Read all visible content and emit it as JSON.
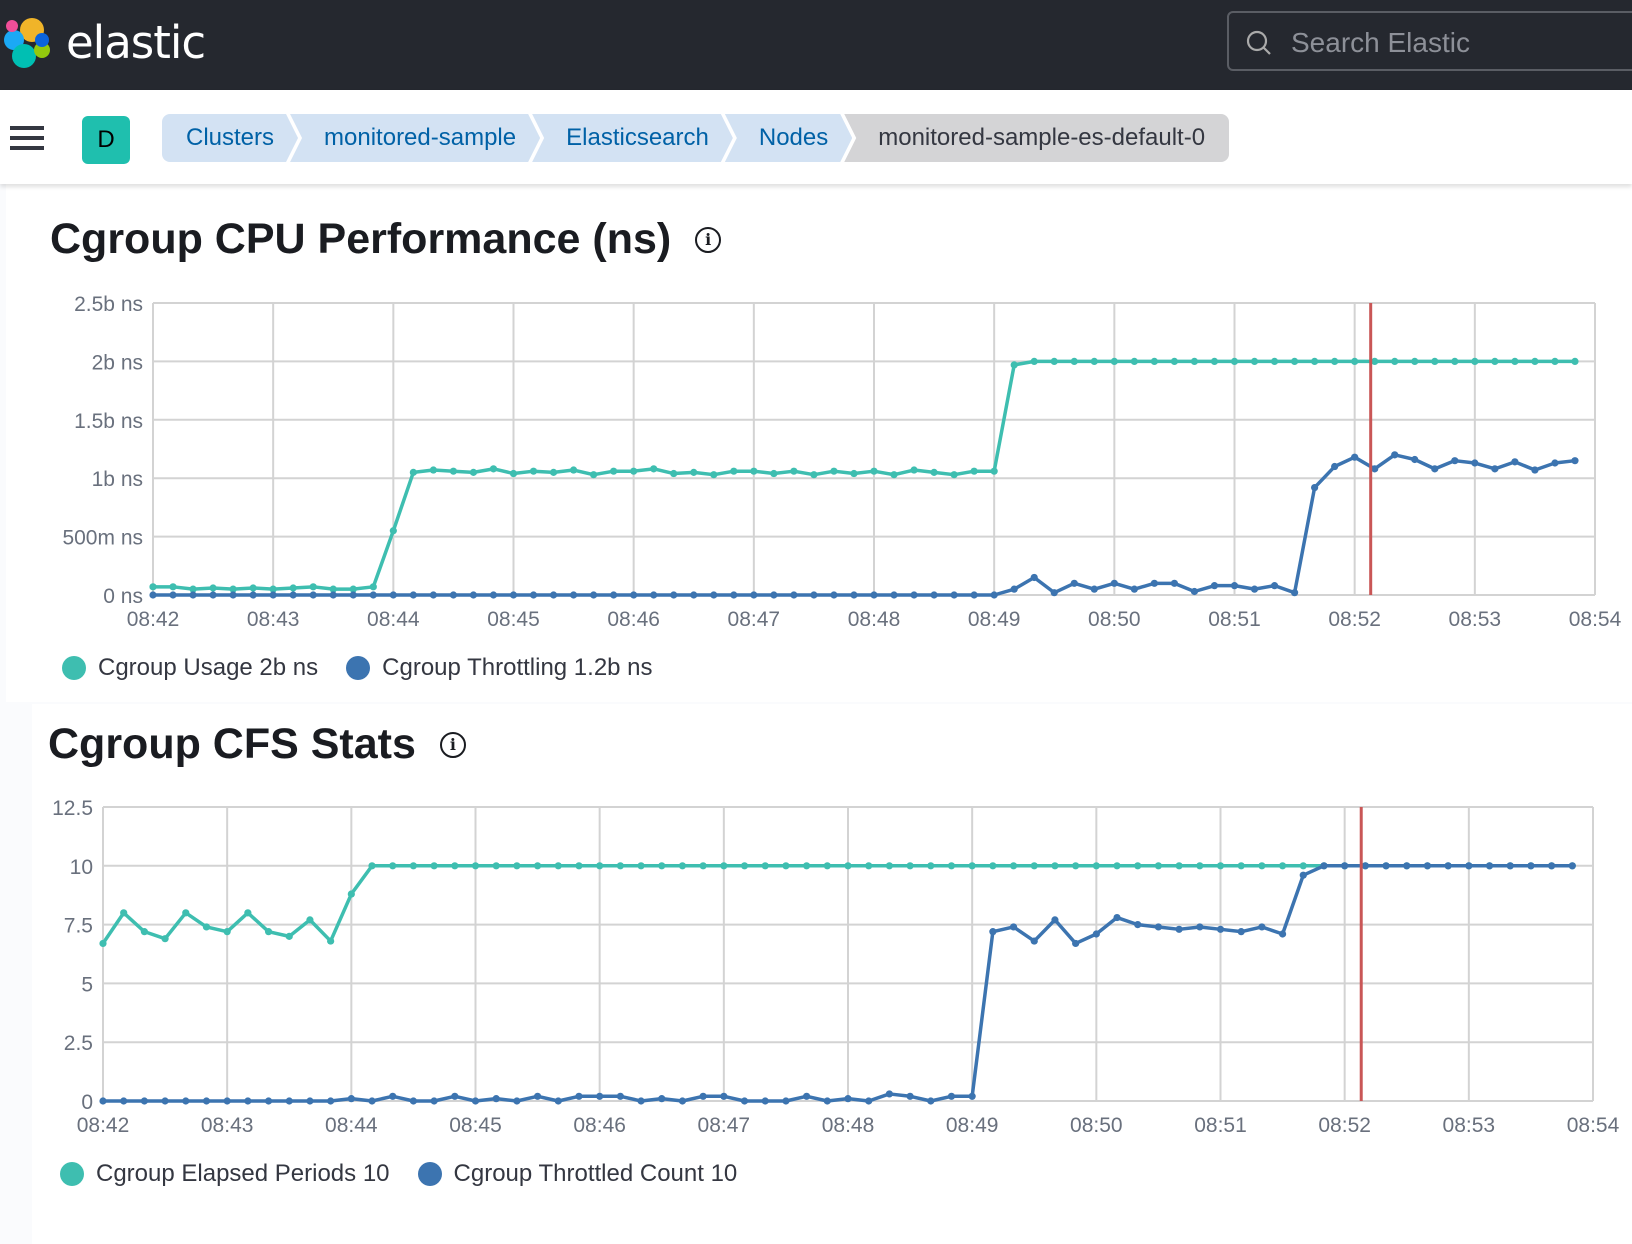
{
  "header": {
    "brand": "elastic",
    "search_placeholder": "Search Elastic"
  },
  "nav": {
    "space_initial": "D",
    "breadcrumbs": [
      "Clusters",
      "monitored-sample",
      "Elasticsearch",
      "Nodes",
      "monitored-sample-es-default-0"
    ]
  },
  "colors": {
    "usage": "#3ebeb0",
    "throttle": "#3c74b0",
    "cursor": "#c95656",
    "grid": "#d3d3d3"
  },
  "chart_data": [
    {
      "type": "line",
      "title": "Cgroup CPU Performance (ns)",
      "ylim": [
        0,
        2500000000
      ],
      "y_ticks": [
        "0 ns",
        "500m ns",
        "1b ns",
        "1.5b ns",
        "2b ns",
        "2.5b ns"
      ],
      "x_ticks": [
        "08:42",
        "08:43",
        "08:44",
        "08:45",
        "08:46",
        "08:47",
        "08:48",
        "08:49",
        "08:50",
        "08:51",
        "08:52",
        "08:53",
        "08:54"
      ],
      "xlim": [
        "08:42:00",
        "08:54:00"
      ],
      "grid": true,
      "legend_position": "bottom-left",
      "cursor_time": "08:52:08",
      "legend": [
        "Cgroup Usage 2b ns",
        "Cgroup Throttling 1.2b ns"
      ],
      "x": [
        "08:42:00",
        "08:42:10",
        "08:42:20",
        "08:42:30",
        "08:42:40",
        "08:42:50",
        "08:43:00",
        "08:43:10",
        "08:43:20",
        "08:43:30",
        "08:43:40",
        "08:43:50",
        "08:44:00",
        "08:44:10",
        "08:44:20",
        "08:44:30",
        "08:44:40",
        "08:44:50",
        "08:45:00",
        "08:45:10",
        "08:45:20",
        "08:45:30",
        "08:45:40",
        "08:45:50",
        "08:46:00",
        "08:46:10",
        "08:46:20",
        "08:46:30",
        "08:46:40",
        "08:46:50",
        "08:47:00",
        "08:47:10",
        "08:47:20",
        "08:47:30",
        "08:47:40",
        "08:47:50",
        "08:48:00",
        "08:48:10",
        "08:48:20",
        "08:48:30",
        "08:48:40",
        "08:48:50",
        "08:49:00",
        "08:49:10",
        "08:49:20",
        "08:49:30",
        "08:49:40",
        "08:49:50",
        "08:50:00",
        "08:50:10",
        "08:50:20",
        "08:50:30",
        "08:50:40",
        "08:50:50",
        "08:51:00",
        "08:51:10",
        "08:51:20",
        "08:51:30",
        "08:51:40",
        "08:51:50",
        "08:52:00",
        "08:52:10",
        "08:52:20",
        "08:52:30",
        "08:52:40",
        "08:52:50",
        "08:53:00",
        "08:53:10",
        "08:53:20",
        "08:53:30",
        "08:53:40",
        "08:53:50"
      ],
      "series": [
        {
          "name": "Cgroup Usage",
          "color_key": "usage",
          "values": [
            70000000.0,
            70000000.0,
            50000000.0,
            60000000.0,
            50000000.0,
            60000000.0,
            50000000.0,
            60000000.0,
            70000000.0,
            50000000.0,
            50000000.0,
            70000000.0,
            550000000.0,
            1050000000.0,
            1070000000.0,
            1060000000.0,
            1050000000.0,
            1080000000.0,
            1040000000.0,
            1060000000.0,
            1050000000.0,
            1070000000.0,
            1030000000.0,
            1060000000.0,
            1060000000.0,
            1080000000.0,
            1040000000.0,
            1050000000.0,
            1030000000.0,
            1060000000.0,
            1060000000.0,
            1040000000.0,
            1060000000.0,
            1030000000.0,
            1060000000.0,
            1040000000.0,
            1060000000.0,
            1030000000.0,
            1070000000.0,
            1050000000.0,
            1030000000.0,
            1060000000.0,
            1060000000.0,
            1970000000.0,
            2000000000.0,
            2000000000.0,
            2000000000.0,
            2000000000.0,
            2000000000.0,
            2000000000.0,
            2000000000.0,
            2000000000.0,
            2000000000.0,
            2000000000.0,
            2000000000.0,
            2000000000.0,
            2000000000.0,
            2000000000.0,
            2000000000.0,
            2000000000.0,
            2000000000.0,
            2000000000.0,
            2000000000.0,
            2000000000.0,
            2000000000.0,
            2000000000.0,
            2000000000.0,
            2000000000.0,
            2000000000.0,
            2000000000.0,
            2000000000.0,
            2000000000.0
          ]
        },
        {
          "name": "Cgroup Throttling",
          "color_key": "throttle",
          "values": [
            0,
            0,
            0,
            0,
            0,
            0,
            0,
            0,
            0,
            0,
            0,
            0,
            0,
            0,
            0,
            0,
            0,
            0,
            0,
            0,
            0,
            0,
            0,
            0,
            0,
            0,
            0,
            0,
            0,
            0,
            0,
            0,
            0,
            0,
            0,
            0,
            0,
            0,
            0,
            0,
            0,
            0,
            0,
            50000000.0,
            150000000.0,
            20000000.0,
            100000000.0,
            50000000.0,
            100000000.0,
            50000000.0,
            100000000.0,
            100000000.0,
            30000000.0,
            80000000.0,
            80000000.0,
            50000000.0,
            80000000.0,
            20000000.0,
            920000000.0,
            1100000000.0,
            1180000000.0,
            1080000000.0,
            1200000000.0,
            1160000000.0,
            1080000000.0,
            1150000000.0,
            1130000000.0,
            1080000000.0,
            1140000000.0,
            1070000000.0,
            1130000000.0,
            1150000000.0
          ]
        }
      ]
    },
    {
      "type": "line",
      "title": "Cgroup CFS Stats",
      "ylim": [
        0,
        12.5
      ],
      "y_ticks": [
        "0",
        "2.5",
        "5",
        "7.5",
        "10",
        "12.5"
      ],
      "x_ticks": [
        "08:42",
        "08:43",
        "08:44",
        "08:45",
        "08:46",
        "08:47",
        "08:48",
        "08:49",
        "08:50",
        "08:51",
        "08:52",
        "08:53",
        "08:54"
      ],
      "xlim": [
        "08:42:00",
        "08:54:00"
      ],
      "grid": true,
      "legend_position": "bottom-left",
      "cursor_time": "08:52:08",
      "legend": [
        "Cgroup Elapsed Periods 10",
        "Cgroup Throttled Count 10"
      ],
      "x": [
        "08:42:00",
        "08:42:10",
        "08:42:20",
        "08:42:30",
        "08:42:40",
        "08:42:50",
        "08:43:00",
        "08:43:10",
        "08:43:20",
        "08:43:30",
        "08:43:40",
        "08:43:50",
        "08:44:00",
        "08:44:10",
        "08:44:20",
        "08:44:30",
        "08:44:40",
        "08:44:50",
        "08:45:00",
        "08:45:10",
        "08:45:20",
        "08:45:30",
        "08:45:40",
        "08:45:50",
        "08:46:00",
        "08:46:10",
        "08:46:20",
        "08:46:30",
        "08:46:40",
        "08:46:50",
        "08:47:00",
        "08:47:10",
        "08:47:20",
        "08:47:30",
        "08:47:40",
        "08:47:50",
        "08:48:00",
        "08:48:10",
        "08:48:20",
        "08:48:30",
        "08:48:40",
        "08:48:50",
        "08:49:00",
        "08:49:10",
        "08:49:20",
        "08:49:30",
        "08:49:40",
        "08:49:50",
        "08:50:00",
        "08:50:10",
        "08:50:20",
        "08:50:30",
        "08:50:40",
        "08:50:50",
        "08:51:00",
        "08:51:10",
        "08:51:20",
        "08:51:30",
        "08:51:40",
        "08:51:50",
        "08:52:00",
        "08:52:10",
        "08:52:20",
        "08:52:30",
        "08:52:40",
        "08:52:50",
        "08:53:00",
        "08:53:10",
        "08:53:20",
        "08:53:30",
        "08:53:40",
        "08:53:50"
      ],
      "series": [
        {
          "name": "Cgroup Elapsed Periods",
          "color_key": "usage",
          "values": [
            6.7,
            8.0,
            7.2,
            6.9,
            8.0,
            7.4,
            7.2,
            8.0,
            7.2,
            7.0,
            7.7,
            6.8,
            8.8,
            10,
            10,
            10,
            10,
            10,
            10,
            10,
            10,
            10,
            10,
            10,
            10,
            10,
            10,
            10,
            10,
            10,
            10,
            10,
            10,
            10,
            10,
            10,
            10,
            10,
            10,
            10,
            10,
            10,
            10,
            10,
            10,
            10,
            10,
            10,
            10,
            10,
            10,
            10,
            10,
            10,
            10,
            10,
            10,
            10,
            10,
            10,
            10,
            10,
            10,
            10,
            10,
            10,
            10,
            10,
            10,
            10,
            10,
            10
          ]
        },
        {
          "name": "Cgroup Throttled Count",
          "color_key": "throttle",
          "values": [
            0,
            0,
            0,
            0,
            0,
            0,
            0,
            0,
            0,
            0,
            0,
            0,
            0.1,
            0,
            0.2,
            0,
            0,
            0.2,
            0,
            0.1,
            0,
            0.2,
            0,
            0.2,
            0.2,
            0.2,
            0,
            0.1,
            0,
            0.2,
            0.2,
            0,
            0,
            0,
            0.2,
            0,
            0.1,
            0,
            0.3,
            0.2,
            0,
            0.2,
            0.2,
            7.2,
            7.4,
            6.8,
            7.7,
            6.7,
            7.1,
            7.8,
            7.5,
            7.4,
            7.3,
            7.4,
            7.3,
            7.2,
            7.4,
            7.1,
            9.6,
            10,
            10,
            10,
            10,
            10,
            10,
            10,
            10,
            10,
            10,
            10,
            10,
            10
          ]
        }
      ]
    }
  ]
}
